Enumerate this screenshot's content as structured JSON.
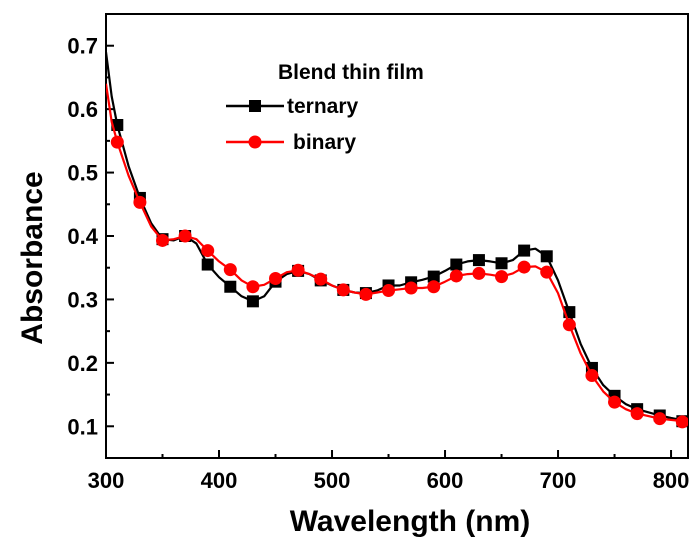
{
  "chart_data": {
    "type": "line",
    "xlabel": "Wavelength (nm)",
    "ylabel": "Absorbance",
    "xlim": [
      300,
      815
    ],
    "ylim": [
      0.05,
      0.75
    ],
    "x_ticks": [
      300,
      400,
      500,
      600,
      700,
      800
    ],
    "y_ticks": [
      0.1,
      0.2,
      0.3,
      0.4,
      0.5,
      0.6,
      0.7
    ],
    "legend": {
      "title": "Blend thin film",
      "position": "top-center"
    },
    "grid": false,
    "series": [
      {
        "name": "ternary",
        "color": "#000000",
        "marker": "square",
        "curve": [
          [
            300,
            0.69
          ],
          [
            305,
            0.62
          ],
          [
            310,
            0.575
          ],
          [
            320,
            0.51
          ],
          [
            330,
            0.46
          ],
          [
            340,
            0.42
          ],
          [
            350,
            0.395
          ],
          [
            360,
            0.393
          ],
          [
            370,
            0.4
          ],
          [
            380,
            0.388
          ],
          [
            390,
            0.355
          ],
          [
            400,
            0.335
          ],
          [
            410,
            0.32
          ],
          [
            420,
            0.305
          ],
          [
            430,
            0.297
          ],
          [
            440,
            0.305
          ],
          [
            450,
            0.328
          ],
          [
            460,
            0.34
          ],
          [
            470,
            0.345
          ],
          [
            480,
            0.34
          ],
          [
            490,
            0.33
          ],
          [
            500,
            0.322
          ],
          [
            510,
            0.315
          ],
          [
            520,
            0.311
          ],
          [
            530,
            0.31
          ],
          [
            540,
            0.314
          ],
          [
            550,
            0.322
          ],
          [
            560,
            0.322
          ],
          [
            570,
            0.327
          ],
          [
            580,
            0.331
          ],
          [
            590,
            0.336
          ],
          [
            600,
            0.345
          ],
          [
            610,
            0.355
          ],
          [
            620,
            0.36
          ],
          [
            630,
            0.362
          ],
          [
            640,
            0.36
          ],
          [
            650,
            0.357
          ],
          [
            660,
            0.362
          ],
          [
            670,
            0.377
          ],
          [
            680,
            0.38
          ],
          [
            690,
            0.368
          ],
          [
            700,
            0.33
          ],
          [
            710,
            0.28
          ],
          [
            720,
            0.23
          ],
          [
            730,
            0.192
          ],
          [
            740,
            0.165
          ],
          [
            750,
            0.148
          ],
          [
            760,
            0.135
          ],
          [
            770,
            0.127
          ],
          [
            780,
            0.122
          ],
          [
            790,
            0.117
          ],
          [
            800,
            0.113
          ],
          [
            815,
            0.108
          ]
        ],
        "markers": [
          [
            310,
            0.575
          ],
          [
            330,
            0.46
          ],
          [
            350,
            0.395
          ],
          [
            370,
            0.4
          ],
          [
            390,
            0.355
          ],
          [
            410,
            0.32
          ],
          [
            430,
            0.297
          ],
          [
            450,
            0.328
          ],
          [
            470,
            0.345
          ],
          [
            490,
            0.33
          ],
          [
            510,
            0.315
          ],
          [
            530,
            0.31
          ],
          [
            550,
            0.322
          ],
          [
            570,
            0.327
          ],
          [
            590,
            0.336
          ],
          [
            610,
            0.355
          ],
          [
            630,
            0.362
          ],
          [
            650,
            0.357
          ],
          [
            670,
            0.377
          ],
          [
            690,
            0.368
          ],
          [
            710,
            0.28
          ],
          [
            730,
            0.192
          ],
          [
            750,
            0.148
          ],
          [
            770,
            0.127
          ],
          [
            790,
            0.117
          ],
          [
            810,
            0.108
          ]
        ]
      },
      {
        "name": "binary",
        "color": "#ff0000",
        "marker": "circle",
        "curve": [
          [
            300,
            0.64
          ],
          [
            305,
            0.58
          ],
          [
            310,
            0.548
          ],
          [
            320,
            0.495
          ],
          [
            330,
            0.453
          ],
          [
            340,
            0.415
          ],
          [
            350,
            0.393
          ],
          [
            360,
            0.395
          ],
          [
            370,
            0.4
          ],
          [
            380,
            0.395
          ],
          [
            390,
            0.377
          ],
          [
            400,
            0.36
          ],
          [
            410,
            0.347
          ],
          [
            420,
            0.33
          ],
          [
            430,
            0.32
          ],
          [
            440,
            0.323
          ],
          [
            450,
            0.333
          ],
          [
            460,
            0.343
          ],
          [
            470,
            0.346
          ],
          [
            480,
            0.34
          ],
          [
            490,
            0.332
          ],
          [
            500,
            0.322
          ],
          [
            510,
            0.315
          ],
          [
            520,
            0.311
          ],
          [
            530,
            0.308
          ],
          [
            540,
            0.311
          ],
          [
            550,
            0.314
          ],
          [
            560,
            0.316
          ],
          [
            570,
            0.318
          ],
          [
            580,
            0.318
          ],
          [
            590,
            0.32
          ],
          [
            600,
            0.328
          ],
          [
            610,
            0.337
          ],
          [
            620,
            0.34
          ],
          [
            630,
            0.341
          ],
          [
            640,
            0.339
          ],
          [
            650,
            0.336
          ],
          [
            660,
            0.341
          ],
          [
            670,
            0.351
          ],
          [
            680,
            0.352
          ],
          [
            690,
            0.343
          ],
          [
            700,
            0.31
          ],
          [
            710,
            0.26
          ],
          [
            720,
            0.215
          ],
          [
            730,
            0.18
          ],
          [
            740,
            0.155
          ],
          [
            750,
            0.138
          ],
          [
            760,
            0.127
          ],
          [
            770,
            0.12
          ],
          [
            780,
            0.116
          ],
          [
            790,
            0.112
          ],
          [
            800,
            0.11
          ],
          [
            815,
            0.107
          ]
        ],
        "markers": [
          [
            310,
            0.548
          ],
          [
            330,
            0.453
          ],
          [
            350,
            0.393
          ],
          [
            370,
            0.4
          ],
          [
            390,
            0.377
          ],
          [
            410,
            0.347
          ],
          [
            430,
            0.32
          ],
          [
            450,
            0.333
          ],
          [
            470,
            0.346
          ],
          [
            490,
            0.332
          ],
          [
            510,
            0.315
          ],
          [
            530,
            0.308
          ],
          [
            550,
            0.314
          ],
          [
            570,
            0.318
          ],
          [
            590,
            0.32
          ],
          [
            610,
            0.337
          ],
          [
            630,
            0.341
          ],
          [
            650,
            0.336
          ],
          [
            670,
            0.351
          ],
          [
            690,
            0.343
          ],
          [
            710,
            0.26
          ],
          [
            730,
            0.18
          ],
          [
            750,
            0.138
          ],
          [
            770,
            0.12
          ],
          [
            790,
            0.112
          ],
          [
            810,
            0.107
          ]
        ]
      }
    ]
  }
}
